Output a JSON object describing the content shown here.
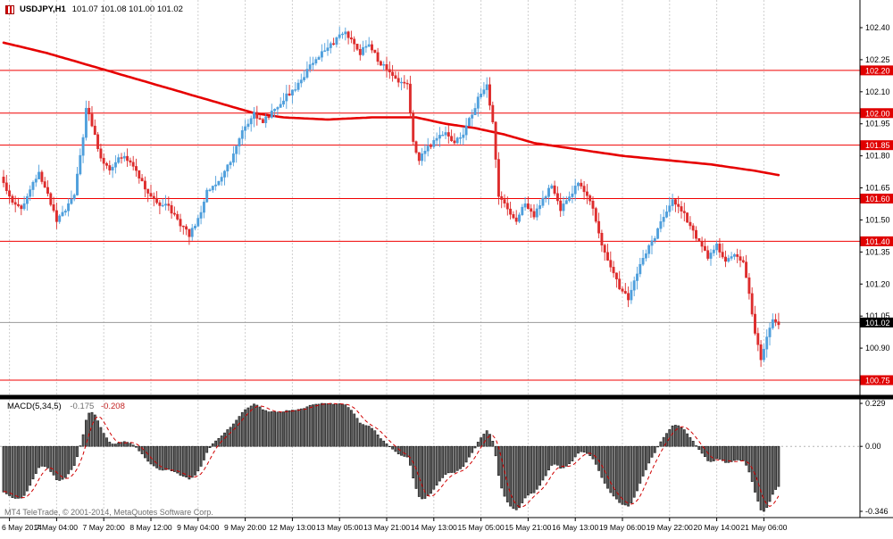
{
  "title": {
    "symbol_timeframe": "USDJPY,H1",
    "ohlc": "101.07 101.08 101.00 101.02"
  },
  "indicator": {
    "label": "MACD(5,34,5)",
    "main_value": "-0.175",
    "signal_value": "-0.208"
  },
  "copyright": "MT4 TeleTrade, © 2001-2014, MetaQuotes Software Corp.",
  "colors": {
    "background": "#ffffff",
    "grid": "#cfcfcf",
    "bull": "#4f9fdc",
    "bear": "#dd2c2c",
    "ma_line": "#e60000",
    "level_line": "#f00000",
    "level_label_bg": "#e00000",
    "current_price_bg": "#000000",
    "axis_text": "#000000",
    "macd_bar_fill": "#5a5a5a",
    "macd_bar_stroke": "#1a1a1a",
    "macd_signal": "#d00000",
    "bid_line": "#9a9a9a",
    "separator": "#000000"
  },
  "chart_data": {
    "type": "candlestick",
    "symbol": "USDJPY",
    "timeframe": "H1",
    "last_ohlc": {
      "open": 101.07,
      "high": 101.08,
      "low": 101.0,
      "close": 101.02
    },
    "price_axis": {
      "ticks": [
        "102.40",
        "102.25",
        "102.10",
        "101.95",
        "101.80",
        "101.65",
        "101.50",
        "101.35",
        "101.20",
        "101.05",
        "100.90"
      ],
      "level_labels": [
        "102.20",
        "102.00",
        "101.85",
        "101.60",
        "101.40",
        "100.75"
      ],
      "current_price": "101.02",
      "range": [
        100.7,
        102.45
      ]
    },
    "levels": [
      102.2,
      102.0,
      101.85,
      101.6,
      101.4,
      100.75
    ],
    "time_axis": {
      "labels": [
        "6 May 2014",
        "7 May 04:00",
        "7 May 20:00",
        "8 May 12:00",
        "9 May 04:00",
        "9 May 20:00",
        "12 May 13:00",
        "13 May 05:00",
        "13 May 21:00",
        "14 May 13:00",
        "15 May 05:00",
        "15 May 21:00",
        "16 May 13:00",
        "19 May 06:00",
        "19 May 22:00",
        "20 May 14:00",
        "21 May 06:00"
      ]
    },
    "bar_count": 264,
    "close_keyframes": [
      [
        -30,
        102.25
      ],
      [
        -18,
        102.0
      ],
      [
        -8,
        101.8
      ],
      [
        -1,
        101.7
      ],
      [
        0,
        101.68
      ],
      [
        3,
        101.58
      ],
      [
        6,
        101.55
      ],
      [
        9,
        101.65
      ],
      [
        12,
        101.72
      ],
      [
        15,
        101.62
      ],
      [
        18,
        101.5
      ],
      [
        21,
        101.55
      ],
      [
        24,
        101.62
      ],
      [
        27,
        101.88
      ],
      [
        28,
        102.02
      ],
      [
        30,
        101.95
      ],
      [
        33,
        101.78
      ],
      [
        36,
        101.74
      ],
      [
        40,
        101.8
      ],
      [
        44,
        101.76
      ],
      [
        48,
        101.65
      ],
      [
        52,
        101.58
      ],
      [
        56,
        101.56
      ],
      [
        60,
        101.48
      ],
      [
        63,
        101.43
      ],
      [
        66,
        101.5
      ],
      [
        69,
        101.63
      ],
      [
        73,
        101.68
      ],
      [
        77,
        101.78
      ],
      [
        81,
        101.92
      ],
      [
        85,
        102.0
      ],
      [
        88,
        101.96
      ],
      [
        92,
        102.02
      ],
      [
        96,
        102.08
      ],
      [
        100,
        102.13
      ],
      [
        104,
        102.22
      ],
      [
        108,
        102.28
      ],
      [
        112,
        102.33
      ],
      [
        115,
        102.38
      ],
      [
        118,
        102.35
      ],
      [
        121,
        102.28
      ],
      [
        124,
        102.33
      ],
      [
        127,
        102.25
      ],
      [
        130,
        102.2
      ],
      [
        133,
        102.16
      ],
      [
        137,
        102.14
      ],
      [
        139,
        101.86
      ],
      [
        141,
        101.78
      ],
      [
        144,
        101.84
      ],
      [
        147,
        101.88
      ],
      [
        150,
        101.92
      ],
      [
        153,
        101.86
      ],
      [
        156,
        101.9
      ],
      [
        159,
        102.0
      ],
      [
        162,
        102.1
      ],
      [
        164,
        102.13
      ],
      [
        166,
        101.95
      ],
      [
        168,
        101.62
      ],
      [
        171,
        101.55
      ],
      [
        174,
        101.5
      ],
      [
        177,
        101.58
      ],
      [
        180,
        101.52
      ],
      [
        183,
        101.6
      ],
      [
        186,
        101.66
      ],
      [
        189,
        101.55
      ],
      [
        192,
        101.6
      ],
      [
        195,
        101.68
      ],
      [
        198,
        101.62
      ],
      [
        200,
        101.55
      ],
      [
        203,
        101.38
      ],
      [
        206,
        101.28
      ],
      [
        209,
        101.18
      ],
      [
        212,
        101.13
      ],
      [
        215,
        101.25
      ],
      [
        218,
        101.35
      ],
      [
        221,
        101.42
      ],
      [
        224,
        101.52
      ],
      [
        227,
        101.6
      ],
      [
        230,
        101.55
      ],
      [
        233,
        101.47
      ],
      [
        236,
        101.4
      ],
      [
        239,
        101.33
      ],
      [
        242,
        101.38
      ],
      [
        245,
        101.3
      ],
      [
        248,
        101.33
      ],
      [
        251,
        101.3
      ],
      [
        253,
        101.15
      ],
      [
        255,
        100.98
      ],
      [
        257,
        100.84
      ],
      [
        259,
        100.95
      ],
      [
        261,
        101.04
      ],
      [
        263,
        101.02
      ]
    ],
    "ma_keyframes": [
      [
        0,
        102.33
      ],
      [
        15,
        102.28
      ],
      [
        30,
        102.22
      ],
      [
        45,
        102.16
      ],
      [
        60,
        102.1
      ],
      [
        75,
        102.04
      ],
      [
        85,
        102.0
      ],
      [
        95,
        101.98
      ],
      [
        110,
        101.97
      ],
      [
        125,
        101.98
      ],
      [
        140,
        101.98
      ],
      [
        150,
        101.95
      ],
      [
        160,
        101.93
      ],
      [
        170,
        101.9
      ],
      [
        180,
        101.86
      ],
      [
        195,
        101.83
      ],
      [
        210,
        101.8
      ],
      [
        225,
        101.78
      ],
      [
        240,
        101.76
      ],
      [
        255,
        101.73
      ],
      [
        263,
        101.71
      ]
    ],
    "macd": {
      "params": [
        5,
        34,
        5
      ],
      "main": -0.175,
      "signal": -0.208,
      "axis_max": 0.229,
      "axis_min": -0.346,
      "axis_labels": [
        "0.229",
        "0.00",
        "-0.346"
      ]
    }
  }
}
